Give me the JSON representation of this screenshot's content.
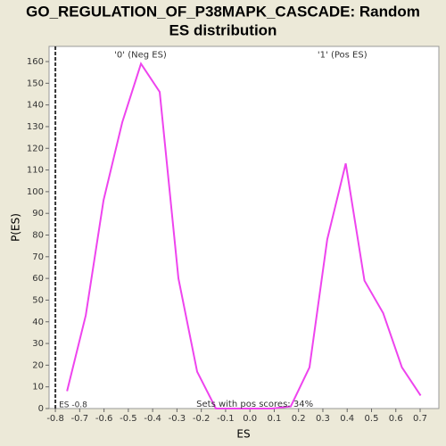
{
  "chart_data": {
    "type": "line",
    "title": [
      "GO_REGULATION_OF_P38MAPK_CASCADE: Random",
      "ES distribution"
    ],
    "x_label": "ES",
    "y_label": "P(ES)",
    "x": [
      -0.752,
      -0.675,
      -0.602,
      -0.525,
      -0.448,
      -0.371,
      -0.294,
      -0.217,
      -0.14,
      -0.063,
      0.014,
      0.091,
      0.168,
      0.245,
      0.318,
      0.394,
      0.471,
      0.548,
      0.625,
      0.702
    ],
    "series": [
      {
        "name": "P(ES)",
        "color": "#ee44ee",
        "values": [
          8,
          43,
          96,
          132,
          159,
          146,
          60,
          17,
          0,
          0,
          0,
          0,
          1,
          19,
          78,
          113,
          59,
          44,
          19,
          6
        ]
      }
    ],
    "xlim": [
      -0.826,
      0.777
    ],
    "ylim": [
      0,
      167
    ],
    "xticks": [
      -0.8,
      -0.7,
      -0.6,
      -0.5,
      -0.4,
      -0.3,
      -0.2,
      -0.1,
      {
        "value": 0,
        "label": "0.0"
      },
      0.1,
      0.2,
      0.3,
      0.4,
      0.5,
      0.6,
      0.7
    ],
    "yticks": [
      0,
      10,
      20,
      30,
      40,
      50,
      60,
      70,
      80,
      90,
      100,
      110,
      120,
      130,
      140,
      150,
      160
    ],
    "annotations": [
      {
        "text": "'0' (Neg ES)",
        "color": "#3333cc",
        "x": -0.45,
        "y": 163
      },
      {
        "text": "'1' (Pos ES)",
        "color": "#cc2222",
        "x": 0.38,
        "y": 163
      },
      {
        "text": "Sets with pos scores: 34%",
        "color": "#333333",
        "x": 0.02,
        "y": 2
      }
    ],
    "observed_es": {
      "value": -0.8,
      "label": "ES -0.8"
    }
  }
}
